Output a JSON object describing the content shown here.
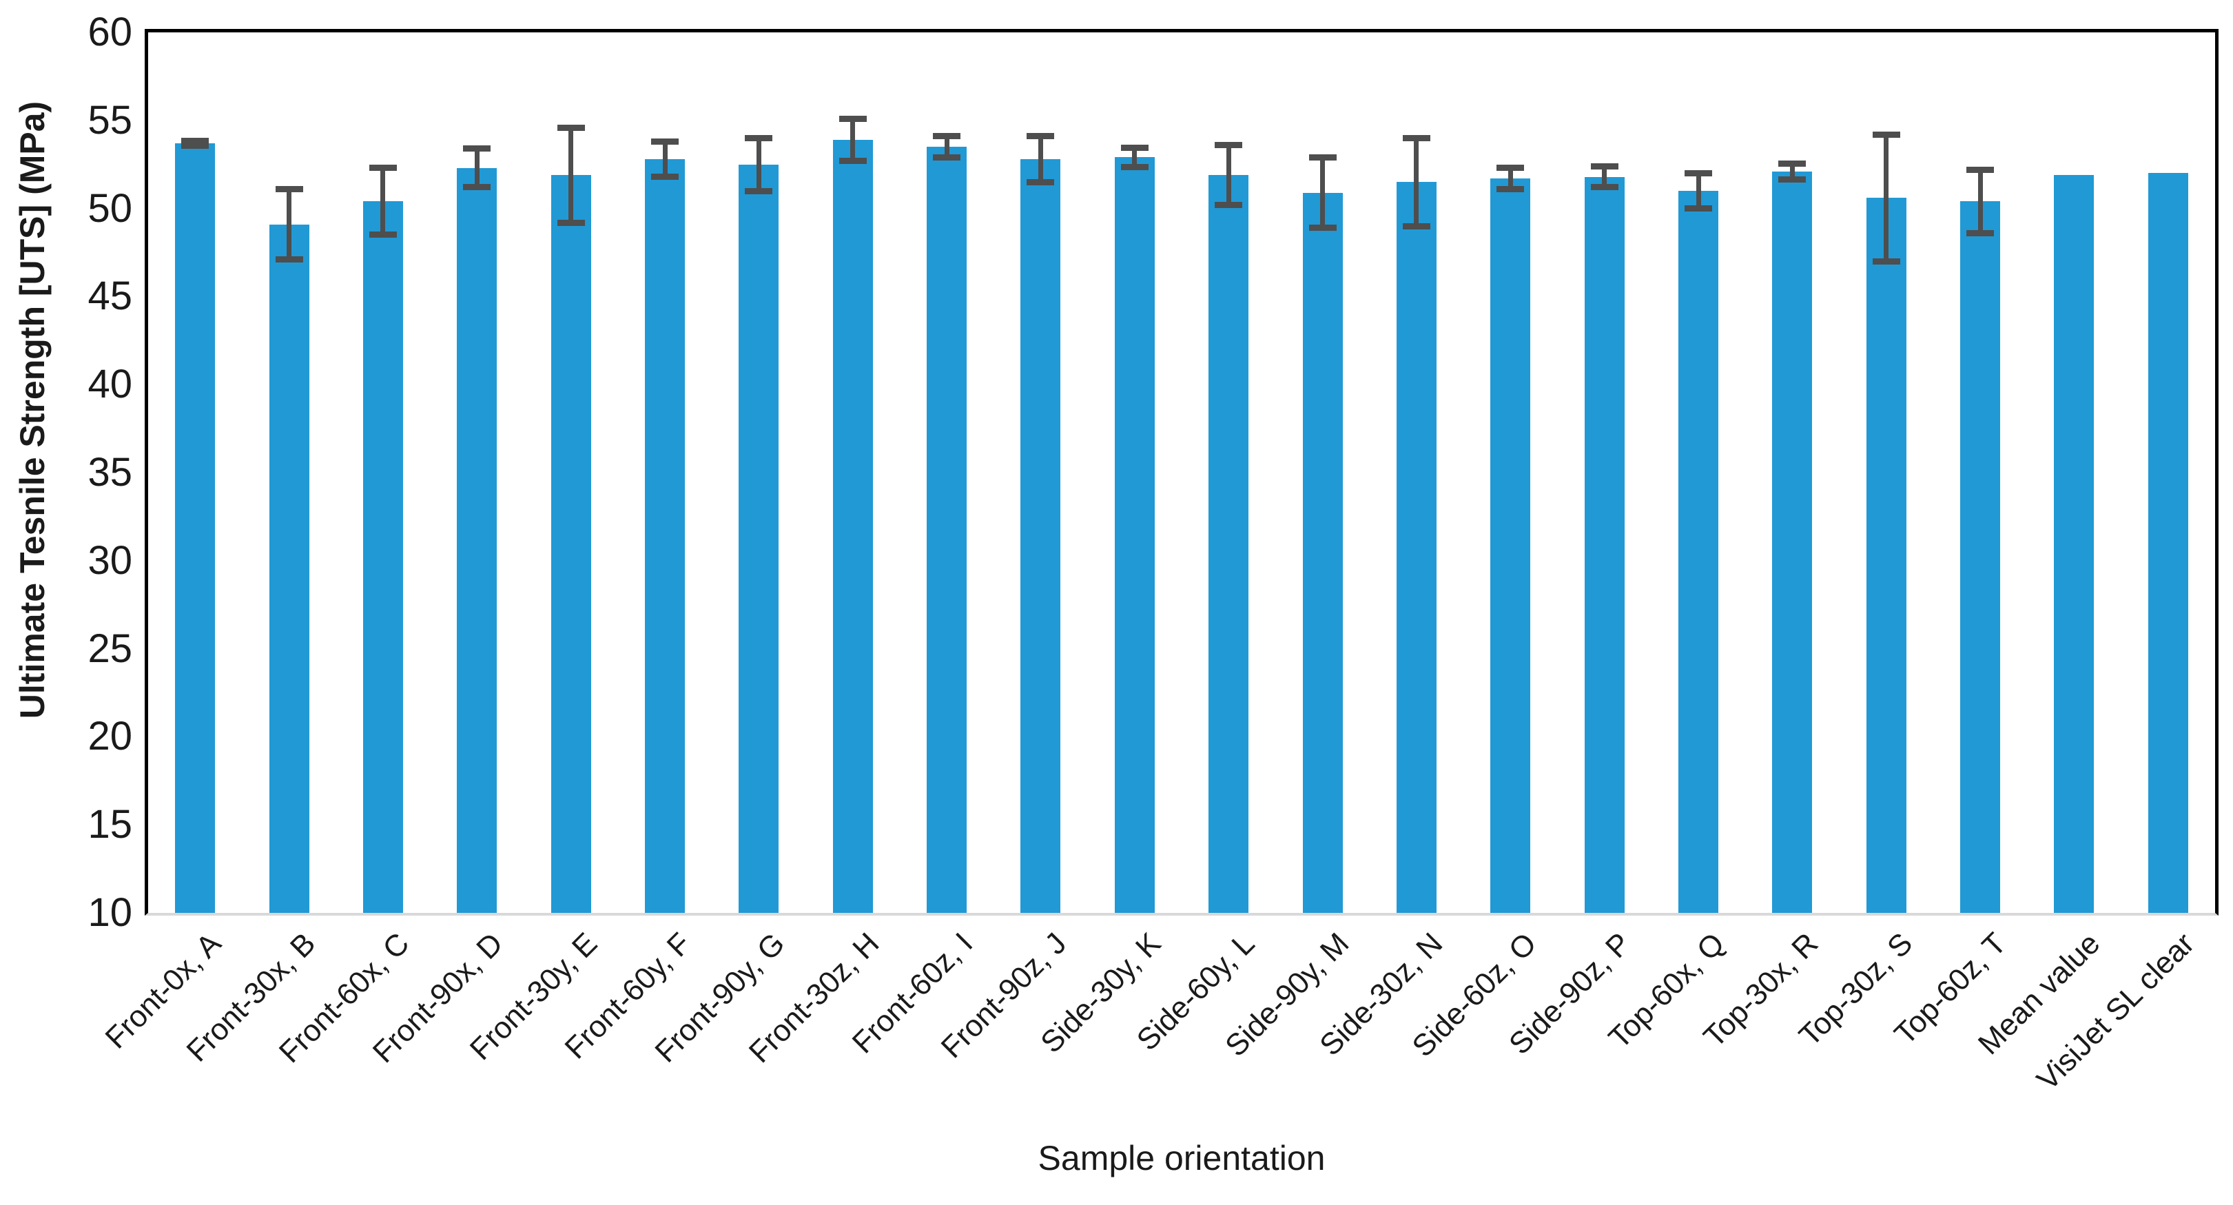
{
  "chart_data": {
    "type": "bar",
    "title": "",
    "xlabel": "Sample orientation",
    "ylabel": "Ultimate Tesnile Strength [UTS] (MPa)",
    "ylim": [
      10,
      60
    ],
    "yticks": [
      10,
      15,
      20,
      25,
      30,
      35,
      40,
      45,
      50,
      55,
      60
    ],
    "grid": false,
    "legend": false,
    "bar_color": "#2199d5",
    "error_bar_color": "#4e4e4e",
    "categories": [
      "Front-0x, A",
      "Front-30x, B",
      "Front-60x, C",
      "Front-90x, D",
      "Front-30y, E",
      "Front-60y, F",
      "Front-90y, G",
      "Front-30z, H",
      "Front-60z, I",
      "Front-90z, J",
      "Side-30y, K",
      "Side-60y, L",
      "Side-90y, M",
      "Side-30z, N",
      "Side-60z, O",
      "Side-90z, P",
      "Top-60x, Q",
      "Top-30x, R",
      "Top-30z, S",
      "Top-60z, T",
      "Mean value",
      "VisiJet SL clear"
    ],
    "values": [
      53.7,
      49.1,
      50.4,
      52.3,
      51.9,
      52.8,
      52.5,
      53.9,
      53.5,
      52.8,
      52.9,
      51.9,
      50.9,
      51.5,
      51.7,
      51.8,
      51.0,
      52.1,
      50.6,
      50.4,
      51.9,
      52.0
    ],
    "errors": [
      0.15,
      2.0,
      1.9,
      1.1,
      2.7,
      1.0,
      1.5,
      1.2,
      0.6,
      1.3,
      0.55,
      1.7,
      2.0,
      2.5,
      0.6,
      0.6,
      1.0,
      0.45,
      3.6,
      1.8,
      null,
      null
    ]
  }
}
